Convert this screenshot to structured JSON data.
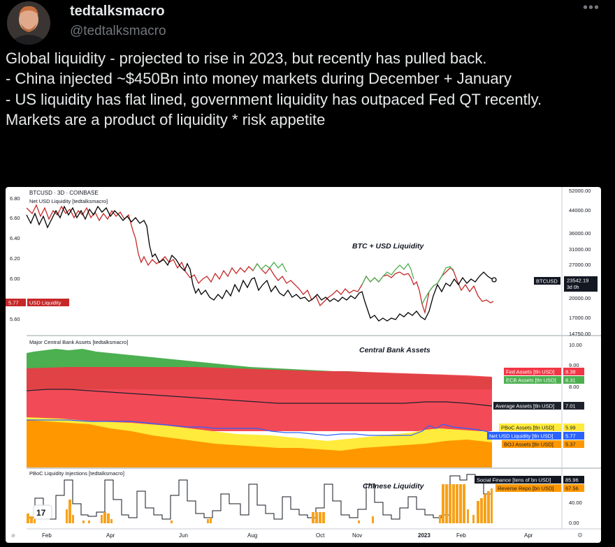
{
  "tweet": {
    "display_name": "tedtalksmacro",
    "handle": "@tedtalksmacro",
    "more_icon": "more-dots-icon",
    "lines": [
      "Global liquidity - projected to rise in 2023, but recently has pulled back.",
      "- China injected ~$450Bn into money markets during December + January",
      "- US liquidity has flat lined, government liquidity has outpaced Fed QT recently.",
      "Markets are a product of liquidity * risk appetite"
    ]
  },
  "chart": {
    "symbol_title": "BTCUSD · 3D · COINBASE",
    "panel1": {
      "indicator": "Net USD Liquidity [tedtalksmacro]",
      "center_title": "BTC + USD Liquidity",
      "left_ticks": [
        "6.80",
        "6.60",
        "6.40",
        "6.20",
        "6.00",
        "5.60"
      ],
      "right_ticks": [
        "52000.00",
        "44000.00",
        "36000.00",
        "31000.00",
        "27000.00",
        "20000.00",
        "17000.00",
        "14750.00"
      ],
      "usd_badge_value": "5.77",
      "usd_badge_label": "USD Liquidity",
      "btc_badge_label": "BTCUSD",
      "btc_badge_value": "23542.19",
      "btc_badge_sub": "3d 0h"
    },
    "panel2": {
      "indicator": "Major Central Bank Assets [tedtalksmacro]",
      "center_title": "Central Bank Assets",
      "right_ticks": [
        "10.00",
        "9.00",
        "8.00"
      ],
      "labels": [
        {
          "name": "Fed Assets [tln USD]",
          "value": "8.38",
          "color": "#f23645"
        },
        {
          "name": "ECB Assets [tln USD]",
          "value": "8.31",
          "color": "#4caf50"
        },
        {
          "name": "Average Assets [tln USD]",
          "value": "7.01",
          "color": "#1e222d"
        },
        {
          "name": "PBoC Assets [tln USD]",
          "value": "5.99",
          "color": "#ffeb3b"
        },
        {
          "name": "Net USD Liquidity [tln USD]",
          "value": "5.77",
          "color": "#2962ff"
        },
        {
          "name": "BOJ Assets [tln USD]",
          "value": "5.37",
          "color": "#ff9800"
        }
      ]
    },
    "panel3": {
      "indicator": "PBoC Liquidity Injections [tedtalksmacro]",
      "center_title": "Chinese Liquidity",
      "right_ticks": [
        "40.00",
        "0.00"
      ],
      "labels": [
        {
          "name": "Social Finance [tens of bn USD]",
          "value": "85.96",
          "color": "#131722"
        },
        {
          "name": "Reverse Repo [bn USD]",
          "value": "67.56",
          "color": "#ff9800"
        }
      ]
    },
    "x_ticks": [
      "Feb",
      "Apr",
      "Jun",
      "Aug",
      "Oct",
      "Nov",
      "2023",
      "Feb",
      "Apr"
    ],
    "colors": {
      "red_line": "#c62828",
      "green_line": "#4caf50",
      "btc_line": "#000000",
      "bars": "#f7a21b"
    }
  }
}
